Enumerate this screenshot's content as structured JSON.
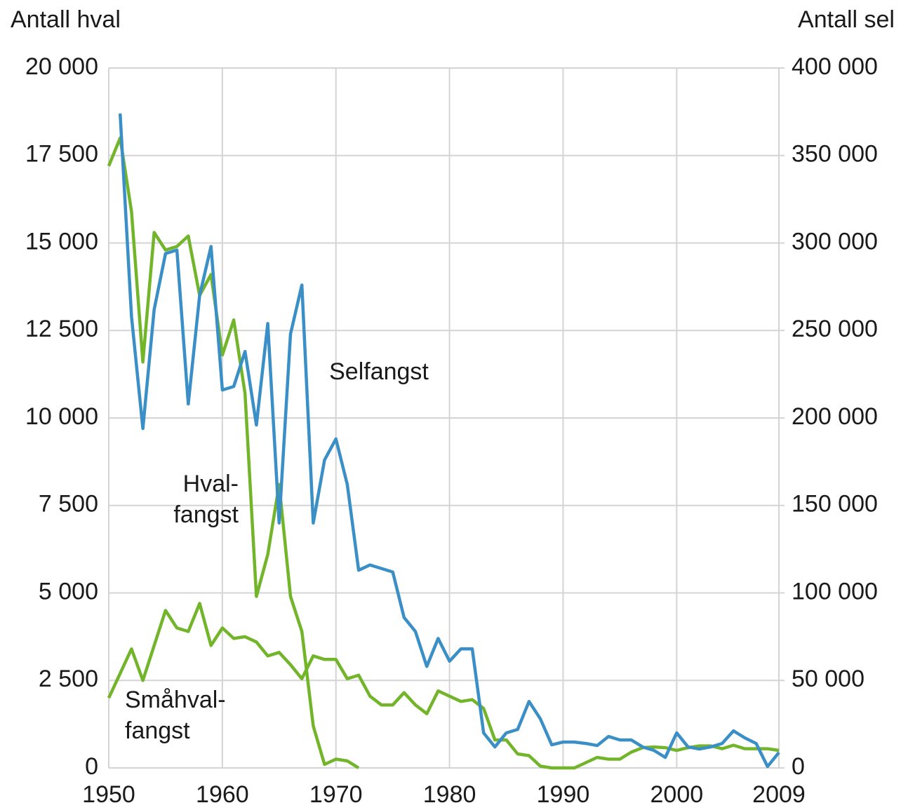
{
  "chart_data": {
    "type": "line",
    "y_label": "Antall hval",
    "y2_label": "Antall sel",
    "x": [
      1950,
      1951,
      1952,
      1953,
      1954,
      1955,
      1956,
      1957,
      1958,
      1959,
      1960,
      1961,
      1962,
      1963,
      1964,
      1965,
      1966,
      1967,
      1968,
      1969,
      1970,
      1971,
      1972,
      1973,
      1974,
      1975,
      1976,
      1977,
      1978,
      1979,
      1980,
      1981,
      1982,
      1983,
      1984,
      1985,
      1986,
      1987,
      1988,
      1989,
      1990,
      1991,
      1992,
      1993,
      1994,
      1995,
      1996,
      1997,
      1998,
      1999,
      2000,
      2001,
      2002,
      2003,
      2004,
      2005,
      2006,
      2007,
      2008,
      2009
    ],
    "series": [
      {
        "name": "Selfangst",
        "color": "#3a8fc6",
        "axis": "y2",
        "values": [
          null,
          374000,
          258000,
          194000,
          262000,
          294000,
          296000,
          208000,
          270000,
          298000,
          216000,
          218000,
          238000,
          196000,
          254000,
          140000,
          248000,
          276000,
          140000,
          176000,
          188000,
          162000,
          113000,
          116000,
          114000,
          112000,
          86000,
          78000,
          58000,
          74000,
          61000,
          68000,
          68000,
          20000,
          12000,
          20000,
          22000,
          38000,
          28000,
          13200,
          14800,
          14800,
          14000,
          12800,
          18000,
          16000,
          16000,
          12000,
          10000,
          6000,
          20000,
          12000,
          10800,
          12000,
          14000,
          21200,
          17200,
          14000,
          800,
          8800
        ]
      },
      {
        "name": "Hvalfangst",
        "color": "#72b52a",
        "values": [
          17200,
          18000,
          15900,
          11600,
          15300,
          14800,
          14900,
          15200,
          13500,
          14100,
          11800,
          12800,
          10700,
          4900,
          6100,
          8100,
          4900,
          3900,
          1200,
          100,
          250,
          200,
          0,
          null,
          null,
          null,
          null,
          null,
          null,
          null,
          null,
          null,
          null,
          null,
          null,
          null,
          null,
          null,
          null,
          null,
          null,
          null,
          null,
          null,
          null,
          null,
          null,
          null,
          null,
          null,
          null,
          null,
          null,
          null,
          null,
          null,
          null,
          null,
          null,
          null
        ]
      },
      {
        "name": "Småhvalfangst",
        "color": "#72b52a",
        "values": [
          2000,
          2700,
          3400,
          2500,
          3500,
          4500,
          4000,
          3900,
          4700,
          3500,
          4000,
          3700,
          3750,
          3600,
          3200,
          3300,
          2950,
          2550,
          3200,
          3100,
          3100,
          2550,
          2650,
          2050,
          1800,
          1800,
          2150,
          1800,
          1550,
          2200,
          2050,
          1900,
          1950,
          1700,
          800,
          800,
          400,
          350,
          50,
          0,
          0,
          0,
          150,
          300,
          250,
          250,
          450,
          580,
          600,
          580,
          500,
          580,
          630,
          630,
          550,
          650,
          550,
          550,
          550,
          500
        ]
      }
    ],
    "annotations": [
      [
        "Selfangst"
      ],
      [
        "Hval-",
        "fangst"
      ],
      [
        "Småhval-",
        "fangst"
      ]
    ],
    "xlim": [
      1950,
      2009
    ],
    "xticks": [
      1950,
      1960,
      1970,
      1980,
      1990,
      2000,
      2009
    ],
    "ylim": [
      0,
      20000
    ],
    "yticks": [
      0,
      {
        "value": 2500,
        "label": "2 500"
      },
      {
        "value": 5000,
        "label": "5 000"
      },
      {
        "value": 7500,
        "label": "7 500"
      },
      {
        "value": 10000,
        "label": "10 000"
      },
      {
        "value": 12500,
        "label": "12 500"
      },
      {
        "value": 15000,
        "label": "15 000"
      },
      {
        "value": 17500,
        "label": "17 500"
      },
      {
        "value": 20000,
        "label": "20 000"
      }
    ],
    "y2lim": [
      0,
      400000
    ],
    "y2ticks": [
      0,
      {
        "value": 50000,
        "label": "50 000"
      },
      {
        "value": 100000,
        "label": "100 000"
      },
      {
        "value": 150000,
        "label": "150 000"
      },
      {
        "value": 200000,
        "label": "200 000"
      },
      {
        "value": 250000,
        "label": "250 000"
      },
      {
        "value": 300000,
        "label": "300 000"
      },
      {
        "value": 350000,
        "label": "350 000"
      },
      {
        "value": 400000,
        "label": "400 000"
      }
    ],
    "grid": true
  }
}
